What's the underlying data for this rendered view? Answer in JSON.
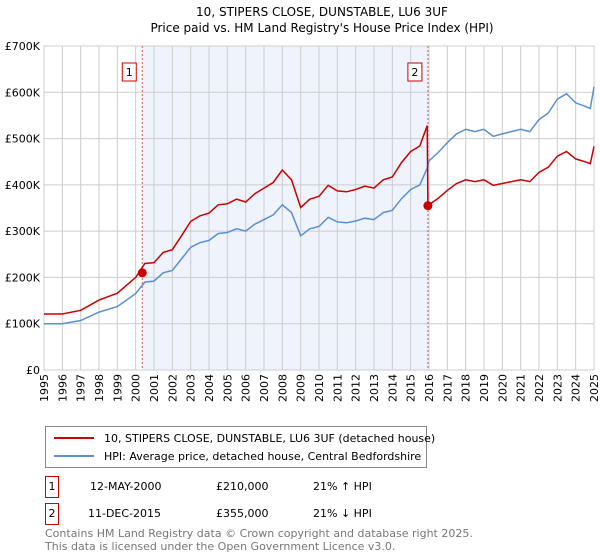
{
  "chart_data": {
    "type": "line",
    "title": "10, STIPERS CLOSE, DUNSTABLE, LU6 3UF",
    "subtitle": "Price paid vs. HM Land Registry's House Price Index (HPI)",
    "xlabel": "",
    "ylabel": "",
    "xlim": [
      1995,
      2025
    ],
    "ylim": [
      0,
      700000
    ],
    "x_ticks": [
      "1995",
      "1996",
      "1997",
      "1998",
      "1999",
      "2000",
      "2001",
      "2002",
      "2003",
      "2004",
      "2005",
      "2006",
      "2007",
      "2008",
      "2009",
      "2010",
      "2011",
      "2012",
      "2013",
      "2014",
      "2015",
      "2016",
      "2017",
      "2018",
      "2019",
      "2020",
      "2021",
      "2022",
      "2023",
      "2024",
      "2025"
    ],
    "y_ticks": [
      {
        "v": 0,
        "label": "£0"
      },
      {
        "v": 100000,
        "label": "£100K"
      },
      {
        "v": 200000,
        "label": "£200K"
      },
      {
        "v": 300000,
        "label": "£300K"
      },
      {
        "v": 400000,
        "label": "£400K"
      },
      {
        "v": 500000,
        "label": "£500K"
      },
      {
        "v": 600000,
        "label": "£600K"
      },
      {
        "v": 700000,
        "label": "£700K"
      }
    ],
    "grid": true,
    "series": [
      {
        "name": "10, STIPERS CLOSE, DUNSTABLE, LU6 3UF (detached house)",
        "color": "#cc0000",
        "x": [
          1995,
          1996,
          1997,
          1998,
          1999,
          2000,
          2000.5,
          2001,
          2001.5,
          2002,
          2002.5,
          2003,
          2003.5,
          2004,
          2004.5,
          2005,
          2005.5,
          2006,
          2006.5,
          2007,
          2007.5,
          2008,
          2008.5,
          2009,
          2009.5,
          2010,
          2010.5,
          2011,
          2011.5,
          2012,
          2012.5,
          2013,
          2013.5,
          2014,
          2014.5,
          2015,
          2015.5,
          2015.9,
          2015.94,
          2016,
          2016.5,
          2017,
          2017.5,
          2018,
          2018.5,
          2019,
          2019.5,
          2020,
          2020.5,
          2021,
          2021.5,
          2022,
          2022.5,
          2023,
          2023.5,
          2024,
          2024.5,
          2024.8,
          2025
        ],
        "values": [
          121000,
          121000,
          129000,
          151000,
          166000,
          200000,
          230000,
          232000,
          254000,
          260000,
          290000,
          321000,
          333000,
          339000,
          357000,
          359000,
          369000,
          363000,
          381000,
          393000,
          405000,
          432000,
          411000,
          351000,
          369000,
          375000,
          399000,
          387000,
          385000,
          390000,
          397000,
          393000,
          411000,
          417000,
          448000,
          472000,
          484000,
          528000,
          355000,
          357000,
          371000,
          388000,
          403000,
          411000,
          407000,
          411000,
          399000,
          403000,
          407000,
          411000,
          407000,
          427000,
          438000,
          462000,
          472000,
          456000,
          450000,
          446000,
          483000
        ]
      },
      {
        "name": "HPI: Average price, detached house, Central Bedfordshire",
        "color": "#5b8fd4",
        "x": [
          1995,
          1996,
          1997,
          1998,
          1999,
          2000,
          2000.5,
          2001,
          2001.5,
          2002,
          2002.5,
          2003,
          2003.5,
          2004,
          2004.5,
          2005,
          2005.5,
          2006,
          2006.5,
          2007,
          2007.5,
          2008,
          2008.5,
          2009,
          2009.5,
          2010,
          2010.5,
          2011,
          2011.5,
          2012,
          2012.5,
          2013,
          2013.5,
          2014,
          2014.5,
          2015,
          2015.5,
          2015.9,
          2016,
          2016.5,
          2017,
          2017.5,
          2018,
          2018.5,
          2019,
          2019.5,
          2020,
          2020.5,
          2021,
          2021.5,
          2022,
          2022.5,
          2023,
          2023.5,
          2024,
          2024.5,
          2024.8,
          2025
        ],
        "values": [
          100000,
          100000,
          107000,
          125000,
          137000,
          165000,
          190000,
          192000,
          210000,
          215000,
          240000,
          265000,
          275000,
          280000,
          295000,
          297000,
          305000,
          300000,
          315000,
          325000,
          335000,
          357000,
          340000,
          290000,
          305000,
          310000,
          330000,
          320000,
          318000,
          322000,
          328000,
          325000,
          340000,
          345000,
          370000,
          390000,
          400000,
          436000,
          452000,
          470000,
          491000,
          510000,
          520000,
          515000,
          520000,
          505000,
          510000,
          515000,
          520000,
          515000,
          541000,
          555000,
          585000,
          597000,
          577000,
          570000,
          565000,
          612000
        ]
      }
    ],
    "sales": [
      {
        "label": "1",
        "x": 2000.36,
        "value": 210000,
        "date": "12-MAY-2000",
        "price": "£210,000",
        "hpi": "21% ↑ HPI"
      },
      {
        "label": "2",
        "x": 2015.94,
        "value": 355000,
        "date": "11-DEC-2015",
        "price": "£355,000",
        "hpi": "21% ↓ HPI"
      }
    ],
    "legend_position": "bottom",
    "shade_color": "#eef3fc"
  },
  "footer": {
    "line1": "Contains HM Land Registry data © Crown copyright and database right 2025.",
    "line2": "This data is licensed under the Open Government Licence v3.0."
  }
}
